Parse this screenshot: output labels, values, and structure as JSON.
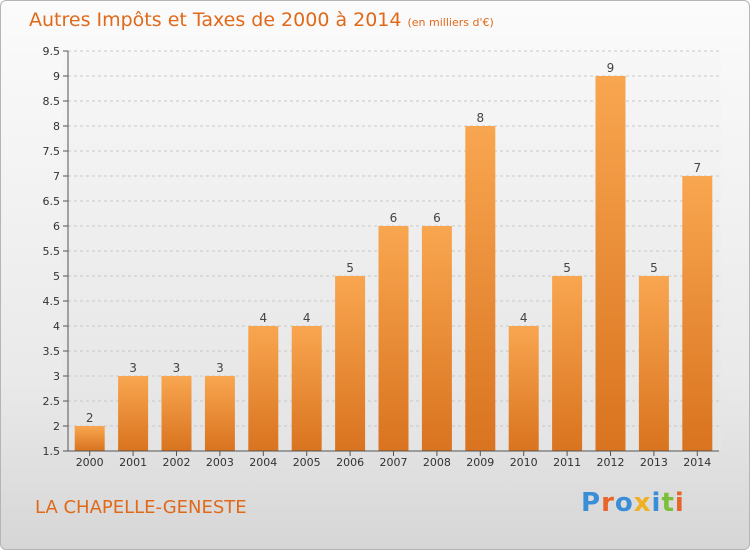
{
  "header": {
    "title": "Autres Impôts et Taxes de 2000 à 2014",
    "subtitle": "(en milliers d'€)"
  },
  "footer": {
    "location": "LA CHAPELLE-GENESTE",
    "logo_text": "Proxiti"
  },
  "colors": {
    "title": "#e0691a",
    "bar_light": "#f9a650",
    "bar_dark": "#d9731f",
    "grid": "#c8c8c8"
  },
  "chart_data": {
    "type": "bar",
    "title": "Autres Impôts et Taxes de 2000 à 2014",
    "subtitle": "(en milliers d'€)",
    "xlabel": "",
    "ylabel": "",
    "categories": [
      "2000",
      "2001",
      "2002",
      "2003",
      "2004",
      "2005",
      "2006",
      "2007",
      "2008",
      "2009",
      "2010",
      "2011",
      "2012",
      "2013",
      "2014"
    ],
    "values": [
      2,
      3,
      3,
      3,
      4,
      4,
      5,
      6,
      6,
      8,
      4,
      5,
      9,
      5,
      7
    ],
    "data_labels": [
      "2",
      "3",
      "3",
      "3",
      "4",
      "4",
      "5",
      "6",
      "6",
      "8",
      "4",
      "5",
      "9",
      "5",
      "7"
    ],
    "ylim": [
      1.5,
      9.5
    ],
    "yticks": [
      1.5,
      2,
      2.5,
      3,
      3.5,
      4,
      4.5,
      5,
      5.5,
      6,
      6.5,
      7,
      7.5,
      8,
      8.5,
      9,
      9.5
    ],
    "ytick_labels": [
      "1.5",
      "2",
      "2.5",
      "3",
      "3.5",
      "4",
      "4.5",
      "5",
      "5.5",
      "6",
      "6.5",
      "7",
      "7.5",
      "8",
      "8.5",
      "9",
      "9.5"
    ],
    "grid": true,
    "legend": "none"
  }
}
